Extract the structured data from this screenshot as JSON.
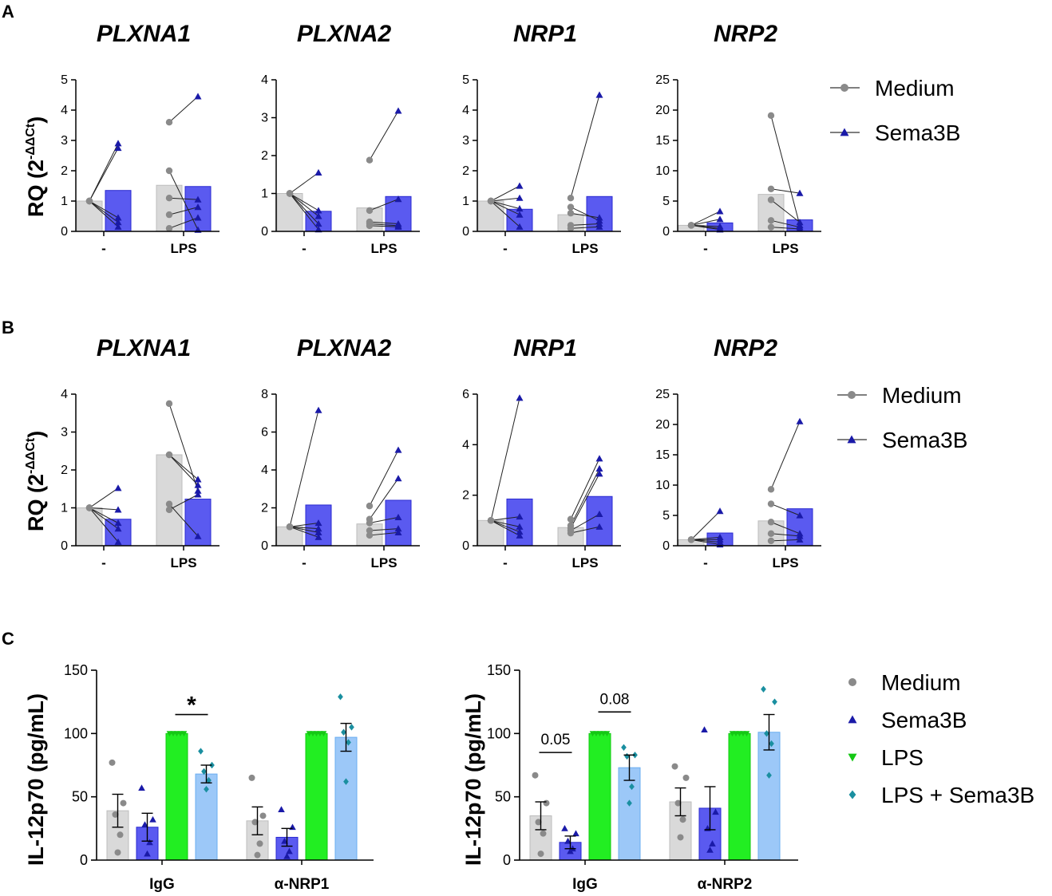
{
  "colors": {
    "medium_bar": "#d9d9d9",
    "medium_point": "#8a8a8a",
    "sema_bar": "#5a5af0",
    "sema_point": "#1a1aa8",
    "lps_bar": "#22ee22",
    "lps_sema_bar": "#9cc8f8",
    "lps_sema_point": "#1a8fa0",
    "axis": "#000000"
  },
  "panels": {
    "A": {
      "letter": "A",
      "ylabel": "RQ (2",
      "ylabel_sup": "-ΔΔCt",
      "ylabel_close": ")",
      "legend": [
        "Medium",
        "Sema3B"
      ]
    },
    "B": {
      "letter": "B",
      "ylabel": "RQ (2",
      "ylabel_sup": "-ΔΔCt",
      "ylabel_close": ")",
      "legend": [
        "Medium",
        "Sema3B"
      ]
    },
    "C": {
      "letter": "C",
      "ylabel": "IL-12p70 (pg/mL)",
      "legend": [
        "Medium",
        "Sema3B",
        "LPS",
        "LPS + Sema3B"
      ]
    }
  },
  "chart_data": [
    {
      "id": "A1",
      "panel": "A",
      "type": "bar",
      "title": "PLXNA1",
      "categories": [
        "-",
        "LPS"
      ],
      "ylim": [
        0,
        5
      ],
      "yticks": [
        0,
        1,
        2,
        3,
        4,
        5
      ],
      "series": [
        {
          "name": "Medium",
          "values": [
            1.0,
            1.52
          ]
        },
        {
          "name": "Sema3B",
          "values": [
            1.35,
            1.48
          ]
        }
      ],
      "points": {
        "-": {
          "Medium": [
            1,
            1,
            1,
            1,
            1
          ],
          "Sema3B": [
            2.9,
            2.75,
            0.45,
            0.3,
            0.15
          ]
        },
        "LPS": {
          "Medium": [
            3.6,
            2.0,
            1.1,
            0.55,
            0.1
          ],
          "Sema3B": [
            4.45,
            0.05,
            1.05,
            0.8,
            0.45
          ]
        }
      }
    },
    {
      "id": "A2",
      "panel": "A",
      "type": "bar",
      "title": "PLXNA2",
      "categories": [
        "-",
        "LPS"
      ],
      "ylim": [
        0,
        4
      ],
      "yticks": [
        0,
        1,
        2,
        3,
        4
      ],
      "series": [
        {
          "name": "Medium",
          "values": [
            1.0,
            0.62
          ]
        },
        {
          "name": "Sema3B",
          "values": [
            0.53,
            0.92
          ]
        }
      ],
      "points": {
        "-": {
          "Medium": [
            1,
            1,
            1,
            1,
            1
          ],
          "Sema3B": [
            1.55,
            0.55,
            0.4,
            0.2,
            0.05
          ]
        },
        "LPS": {
          "Medium": [
            1.88,
            0.55,
            0.25,
            0.2,
            0.15
          ],
          "Sema3B": [
            3.18,
            0.85,
            0.2,
            0.15,
            0.12
          ]
        }
      }
    },
    {
      "id": "A3",
      "panel": "A",
      "type": "bar",
      "title": "NRP1",
      "categories": [
        "-",
        "LPS"
      ],
      "ylim": [
        0,
        5
      ],
      "yticks": [
        0,
        1,
        2,
        3,
        4,
        5
      ],
      "series": [
        {
          "name": "Medium",
          "values": [
            1.0,
            0.55
          ]
        },
        {
          "name": "Sema3B",
          "values": [
            0.73,
            1.15
          ]
        }
      ],
      "points": {
        "-": {
          "Medium": [
            1,
            1,
            1,
            1,
            1
          ],
          "Sema3B": [
            1.5,
            1.1,
            0.75,
            0.55,
            0.15
          ]
        },
        "LPS": {
          "Medium": [
            1.1,
            0.6,
            0.8,
            0.2,
            0.1
          ],
          "Sema3B": [
            4.5,
            0.45,
            0.35,
            0.25,
            0.15
          ]
        }
      }
    },
    {
      "id": "A4",
      "panel": "A",
      "type": "bar",
      "title": "NRP2",
      "categories": [
        "-",
        "LPS"
      ],
      "ylim": [
        0,
        25
      ],
      "yticks": [
        0,
        5,
        10,
        15,
        20,
        25
      ],
      "series": [
        {
          "name": "Medium",
          "values": [
            1.0,
            6.1
          ]
        },
        {
          "name": "Sema3B",
          "values": [
            1.4,
            1.9
          ]
        }
      ],
      "points": {
        "-": {
          "Medium": [
            1,
            1,
            1,
            1,
            1
          ],
          "Sema3B": [
            3.3,
            2.0,
            0.8,
            0.5,
            0.3
          ]
        },
        "LPS": {
          "Medium": [
            19.1,
            7.0,
            5.2,
            1.8,
            0.7
          ],
          "Sema3B": [
            1.0,
            6.3,
            1.5,
            0.7,
            0.4
          ]
        }
      }
    },
    {
      "id": "B1",
      "panel": "B",
      "type": "bar",
      "title": "PLXNA1",
      "categories": [
        "-",
        "LPS"
      ],
      "ylim": [
        0,
        4
      ],
      "yticks": [
        0,
        1,
        2,
        3,
        4
      ],
      "series": [
        {
          "name": "Medium",
          "values": [
            1.0,
            2.4
          ]
        },
        {
          "name": "Sema3B",
          "values": [
            0.7,
            1.23
          ]
        }
      ],
      "points": {
        "-": {
          "Medium": [
            1,
            1,
            1,
            1,
            1
          ],
          "Sema3B": [
            1.52,
            0.95,
            0.6,
            0.45,
            0.1
          ]
        },
        "LPS": {
          "Medium": [
            3.75,
            2.4,
            1.1,
            0.95,
            2.4
          ],
          "Sema3B": [
            1.45,
            1.75,
            0.25,
            1.35,
            1.6
          ]
        }
      }
    },
    {
      "id": "B2",
      "panel": "B",
      "type": "bar",
      "title": "PLXNA2",
      "categories": [
        "-",
        "LPS"
      ],
      "ylim": [
        0,
        8
      ],
      "yticks": [
        0,
        2,
        4,
        6,
        8
      ],
      "series": [
        {
          "name": "Medium",
          "values": [
            1.0,
            1.15
          ]
        },
        {
          "name": "Sema3B",
          "values": [
            2.15,
            2.4
          ]
        }
      ],
      "points": {
        "-": {
          "Medium": [
            1,
            1,
            1,
            1,
            1
          ],
          "Sema3B": [
            7.15,
            1.2,
            0.9,
            0.7,
            0.45
          ]
        },
        "LPS": {
          "Medium": [
            2.1,
            1.4,
            1.2,
            0.8,
            0.55
          ],
          "Sema3B": [
            5.05,
            3.55,
            1.5,
            0.9,
            0.7
          ]
        }
      }
    },
    {
      "id": "B3",
      "panel": "B",
      "type": "bar",
      "title": "NRP1",
      "categories": [
        "-",
        "LPS"
      ],
      "ylim": [
        0,
        6
      ],
      "yticks": [
        0,
        2,
        4,
        6
      ],
      "series": [
        {
          "name": "Medium",
          "values": [
            1.0,
            0.72
          ]
        },
        {
          "name": "Sema3B",
          "values": [
            1.85,
            1.95
          ]
        }
      ],
      "points": {
        "-": {
          "Medium": [
            1,
            1,
            1,
            1,
            1
          ],
          "Sema3B": [
            5.85,
            1.15,
            0.75,
            0.55,
            0.4
          ]
        },
        "LPS": {
          "Medium": [
            1.05,
            0.8,
            0.7,
            0.6,
            0.5
          ],
          "Sema3B": [
            3.45,
            3.05,
            2.85,
            1.25,
            0.75
          ]
        }
      }
    },
    {
      "id": "B4",
      "panel": "B",
      "type": "bar",
      "title": "NRP2",
      "categories": [
        "-",
        "LPS"
      ],
      "ylim": [
        0,
        25
      ],
      "yticks": [
        0,
        5,
        10,
        15,
        20,
        25
      ],
      "series": [
        {
          "name": "Medium",
          "values": [
            1.0,
            4.1
          ]
        },
        {
          "name": "Sema3B",
          "values": [
            2.1,
            6.1
          ]
        }
      ],
      "points": {
        "-": {
          "Medium": [
            1,
            1,
            1,
            1,
            1
          ],
          "Sema3B": [
            5.7,
            1.4,
            1.0,
            0.6,
            0.2
          ]
        },
        "LPS": {
          "Medium": [
            9.3,
            6.9,
            3.9,
            2.0,
            0.8
          ],
          "Sema3B": [
            20.5,
            5.0,
            2.0,
            1.6,
            1.0
          ]
        }
      }
    },
    {
      "id": "C1",
      "panel": "C",
      "type": "bar",
      "categories": [
        "IgG",
        "α-NRP1"
      ],
      "ylim": [
        0,
        150
      ],
      "yticks": [
        0,
        50,
        100,
        150
      ],
      "series": [
        {
          "name": "Medium",
          "values": [
            39,
            31
          ],
          "sem": [
            13,
            11
          ]
        },
        {
          "name": "Sema3B",
          "values": [
            26,
            18
          ],
          "sem": [
            11,
            7
          ]
        },
        {
          "name": "LPS",
          "values": [
            100,
            100
          ],
          "sem": [
            0,
            0
          ]
        },
        {
          "name": "LPS + Sema3B",
          "values": [
            68,
            97
          ],
          "sem": [
            7,
            11
          ]
        }
      ],
      "points": {
        "IgG": {
          "Medium": [
            77,
            45,
            36,
            20,
            6
          ],
          "Sema3B": [
            57,
            32,
            28,
            14,
            5
          ],
          "LPS": [
            100,
            100,
            100,
            100,
            100
          ],
          "LPS + Sema3B": [
            86,
            75,
            70,
            63,
            56
          ]
        },
        "α-NRP1": {
          "Medium": [
            65,
            35,
            30,
            13,
            4
          ],
          "Sema3B": [
            40,
            26,
            15,
            7,
            3
          ],
          "LPS": [
            100,
            100,
            100,
            100,
            100
          ],
          "LPS + Sema3B": [
            129,
            105,
            101,
            93,
            62
          ]
        }
      },
      "annotations": [
        {
          "group": "IgG",
          "between": [
            "LPS",
            "LPS + Sema3B"
          ],
          "label": "*",
          "y": 115
        }
      ]
    },
    {
      "id": "C2",
      "panel": "C",
      "type": "bar",
      "categories": [
        "IgG",
        "α-NRP2"
      ],
      "ylim": [
        0,
        150
      ],
      "yticks": [
        0,
        50,
        100,
        150
      ],
      "series": [
        {
          "name": "Medium",
          "values": [
            35,
            46
          ],
          "sem": [
            11,
            11
          ]
        },
        {
          "name": "Sema3B",
          "values": [
            14,
            41
          ],
          "sem": [
            5,
            17
          ]
        },
        {
          "name": "LPS",
          "values": [
            100,
            100
          ],
          "sem": [
            0,
            0
          ]
        },
        {
          "name": "LPS + Sema3B",
          "values": [
            73,
            101
          ],
          "sem": [
            10,
            14
          ]
        }
      ],
      "points": {
        "IgG": {
          "Medium": [
            67,
            45,
            30,
            21,
            5
          ],
          "Sema3B": [
            25,
            21,
            15,
            9,
            7
          ],
          "LPS": [
            100,
            100,
            100,
            100,
            100
          ],
          "LPS + Sema3B": [
            89,
            83,
            82,
            58,
            45
          ]
        },
        "α-NRP2": {
          "Medium": [
            74,
            65,
            45,
            32,
            18
          ],
          "Sema3B": [
            103,
            38,
            25,
            13,
            8
          ],
          "LPS": [
            100,
            100,
            100,
            100,
            100
          ],
          "LPS + Sema3B": [
            135,
            125,
            100,
            92,
            67
          ]
        }
      },
      "annotations": [
        {
          "group": "IgG",
          "between": [
            "Medium",
            "Sema3B"
          ],
          "label": "0.05",
          "y": 85
        },
        {
          "group": "IgG",
          "between": [
            "LPS",
            "LPS + Sema3B"
          ],
          "label": "0.08",
          "y": 117
        }
      ]
    }
  ]
}
